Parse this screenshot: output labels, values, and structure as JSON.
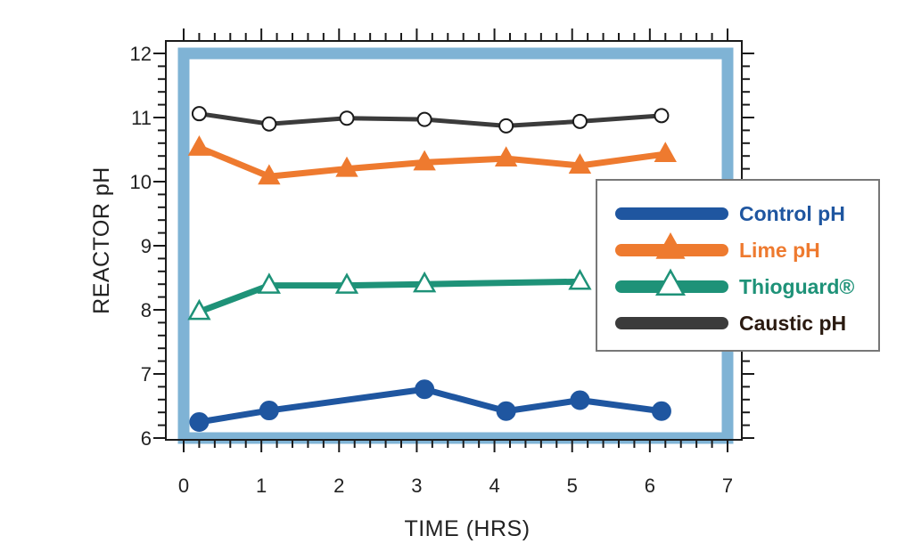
{
  "chart_data": {
    "type": "line",
    "title": "",
    "xlabel": "TIME (HRS)",
    "ylabel": "REACTOR pH",
    "xlim": [
      0,
      7
    ],
    "ylim": [
      6,
      12
    ],
    "x_ticks": [
      "0",
      "1",
      "2",
      "3",
      "4",
      "5",
      "6",
      "7"
    ],
    "y_ticks": [
      "6",
      "7",
      "8",
      "9",
      "10",
      "11",
      "12"
    ],
    "grid": false,
    "legend_position": "right",
    "frame_color": "#7fb3d5",
    "series": [
      {
        "name": "Control pH",
        "color": "#1f56a0",
        "marker": "circle-filled",
        "x": [
          0.2,
          1.1,
          3.1,
          4.15,
          5.1,
          6.15
        ],
        "values": [
          6.25,
          6.43,
          6.76,
          6.42,
          6.59,
          6.42
        ]
      },
      {
        "name": "Lime pH",
        "color": "#ee7a2f",
        "marker": "triangle-filled",
        "x": [
          0.2,
          1.1,
          2.1,
          3.1,
          4.15,
          5.1,
          6.2
        ],
        "values": [
          10.53,
          10.08,
          10.2,
          10.3,
          10.36,
          10.25,
          10.43
        ]
      },
      {
        "name": "Thioguard®",
        "color": "#1e9278",
        "marker": "triangle-open",
        "x": [
          0.2,
          1.1,
          2.1,
          3.1,
          5.1
        ],
        "values": [
          7.97,
          8.38,
          8.38,
          8.4,
          8.44
        ]
      },
      {
        "name": "Caustic pH",
        "color": "#3b3b3b",
        "label_color": "#2a1a10",
        "marker": "circle-open",
        "x": [
          0.2,
          1.1,
          2.1,
          3.1,
          4.15,
          5.1,
          6.15
        ],
        "values": [
          11.06,
          10.9,
          10.99,
          10.97,
          10.87,
          10.94,
          11.03
        ]
      }
    ]
  }
}
